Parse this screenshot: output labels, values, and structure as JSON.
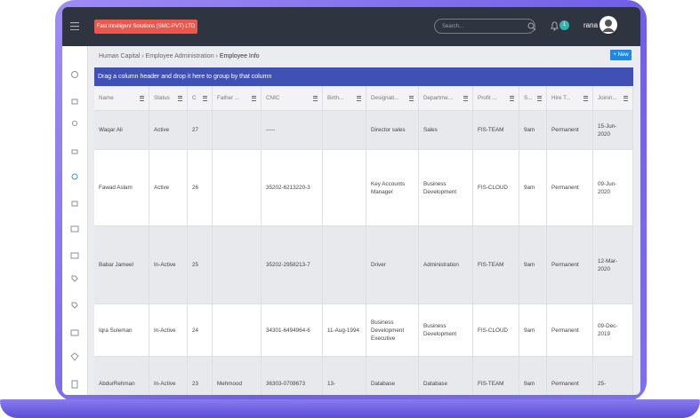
{
  "topbar": {
    "company": "Fast Intelligent Solutions (SMC-PVT) LTD",
    "search_placeholder": "Search...",
    "notifications": "1",
    "user": "rana"
  },
  "breadcrumb": [
    "Human Capital",
    "Employee Administration",
    "Employee Info"
  ],
  "new_button": "+ New",
  "group_hint": "Drag a column header and drop it here to group by that column",
  "table": {
    "columns": [
      "Name",
      "Status",
      "C",
      "Father ...",
      "CNIC",
      "Birth...",
      "Designati...",
      "Departme...",
      "Profit ...",
      "S...",
      "Hire T...",
      "Joinin..."
    ],
    "rows": [
      [
        "Waqar Ali",
        "Active",
        "27",
        null,
        "-----",
        null,
        "Director sales",
        "Sales",
        "FIS-TEAM",
        "9am",
        "Permanent",
        "15-Jun-2020"
      ],
      [
        "Fawad Aslam",
        "Active",
        "26",
        null,
        "35202-6213220-3",
        null,
        "Key Accounts Manager",
        "Business Development",
        "FIS-CLOUD",
        "9am",
        "Permanent",
        "09-Jun-2020"
      ],
      [
        "Babar Jameel",
        "In-Active",
        "25",
        null,
        "35202-2958213-7",
        null,
        "Driver",
        "Administration",
        "FIS-TEAM",
        "9am",
        "Permanent",
        "12-Mar-2020"
      ],
      [
        "Iqra Suleman",
        "In-Active",
        "24",
        null,
        "34301-6494964-6",
        "11-Aug-1994",
        "Business Development Executive",
        "Business Development",
        "FIS-CLOUD",
        "9am",
        "Permanent",
        "09-Dec-2019"
      ],
      [
        "AbdurRehman",
        "In-Active",
        "23",
        "Mehmood",
        "36303-0708673",
        "13-",
        "Database",
        "Database",
        "FIS-TEAM",
        "9am",
        "Permanent",
        "25-"
      ]
    ]
  }
}
